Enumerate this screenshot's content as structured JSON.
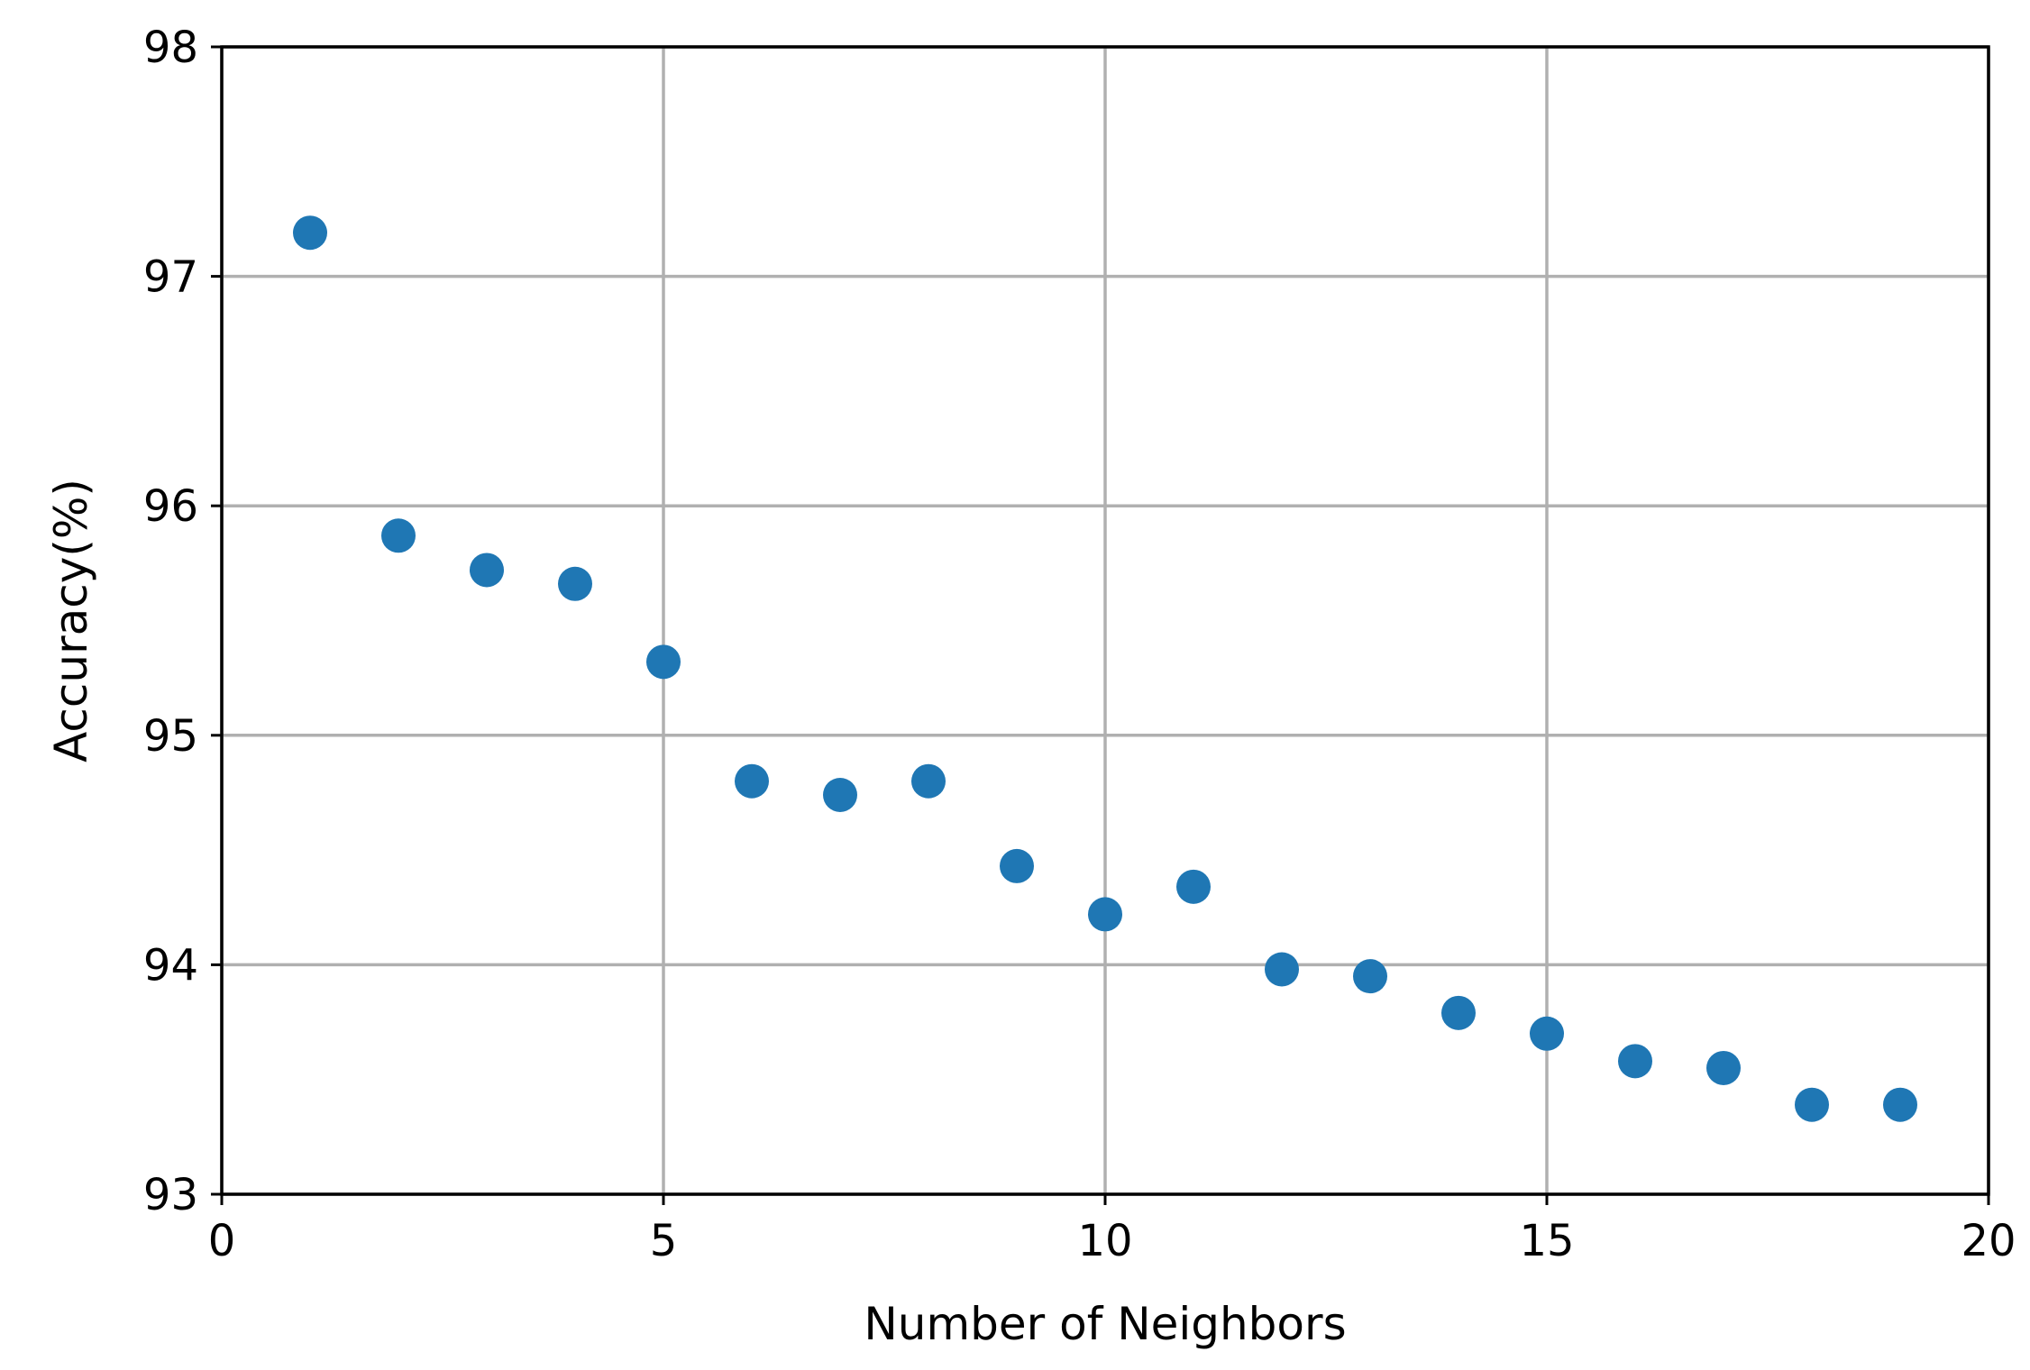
{
  "chart_data": {
    "type": "scatter",
    "title": "",
    "xlabel": "Number of Neighbors",
    "ylabel": "Accuracy(%)",
    "xlim": [
      0,
      20
    ],
    "ylim": [
      93,
      98
    ],
    "xticks": [
      0,
      5,
      10,
      15,
      20
    ],
    "yticks": [
      93,
      94,
      95,
      96,
      97,
      98
    ],
    "grid": true,
    "marker_color": "#1f77b4",
    "x": [
      1,
      2,
      3,
      4,
      5,
      6,
      7,
      8,
      9,
      10,
      11,
      12,
      13,
      14,
      15,
      16,
      17,
      18,
      19
    ],
    "y": [
      97.19,
      95.87,
      95.72,
      95.66,
      95.32,
      94.8,
      94.74,
      94.8,
      94.43,
      94.22,
      94.34,
      93.98,
      93.95,
      93.79,
      93.7,
      93.58,
      93.55,
      93.39,
      93.39
    ]
  }
}
